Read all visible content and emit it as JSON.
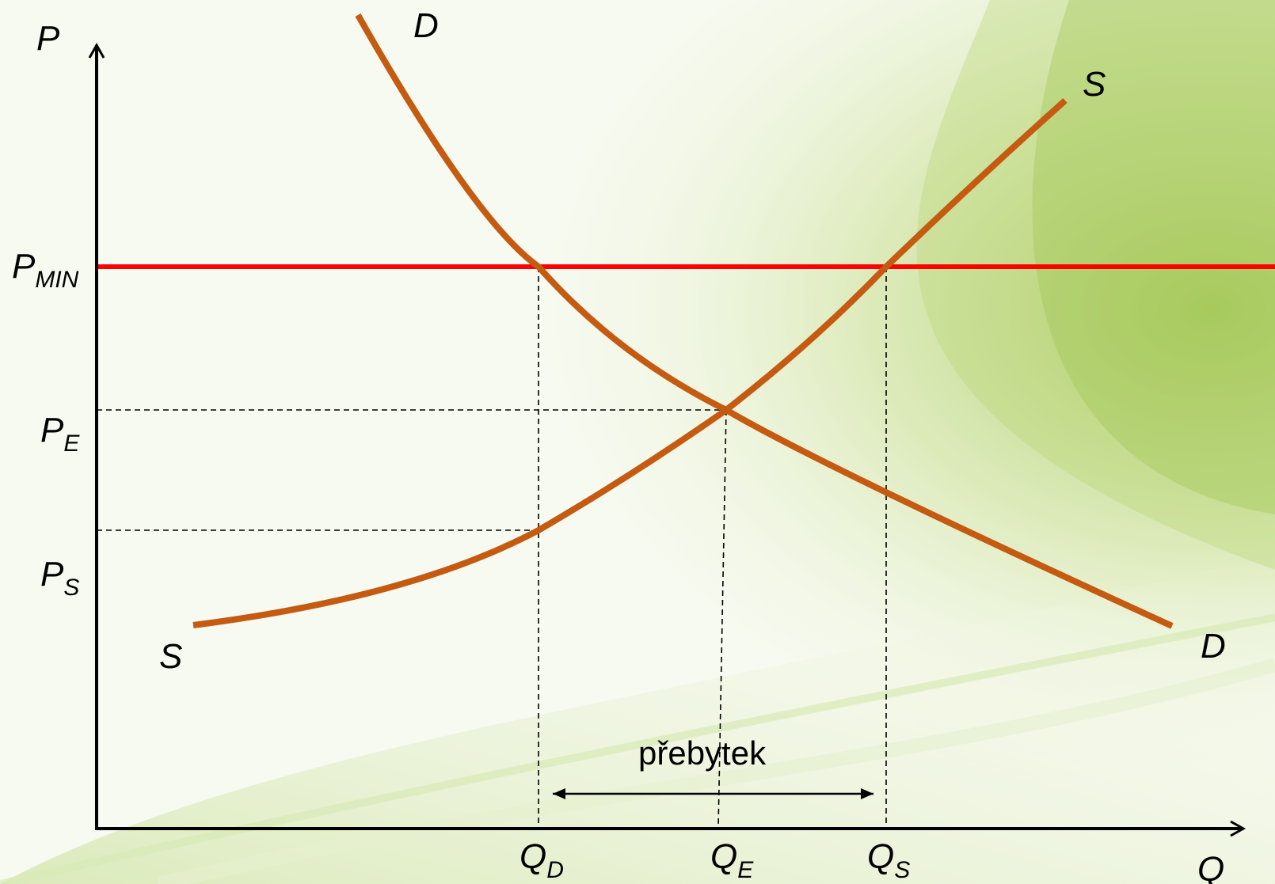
{
  "axes": {
    "y_label": "P",
    "x_label": "Q"
  },
  "price_labels": {
    "p_min": {
      "main": "P",
      "sub": "MIN"
    },
    "p_e": {
      "main": "P",
      "sub": "E"
    },
    "p_s": {
      "main": "P",
      "sub": "S"
    }
  },
  "quantity_labels": {
    "q_d": {
      "main": "Q",
      "sub": "D"
    },
    "q_e": {
      "main": "Q",
      "sub": "E"
    },
    "q_s": {
      "main": "Q",
      "sub": "S"
    }
  },
  "curves": {
    "demand": {
      "label_top": "D",
      "label_bottom": "D",
      "color": "#C55A11"
    },
    "supply": {
      "label_top": "S",
      "label_bottom": "S",
      "color": "#C55A11"
    },
    "price_floor": {
      "color": "#FF0000"
    }
  },
  "surplus": {
    "label": "přebytek"
  },
  "colors": {
    "axis": "#000000",
    "guide": "#000000",
    "background_accent": "#A9CC5A"
  }
}
